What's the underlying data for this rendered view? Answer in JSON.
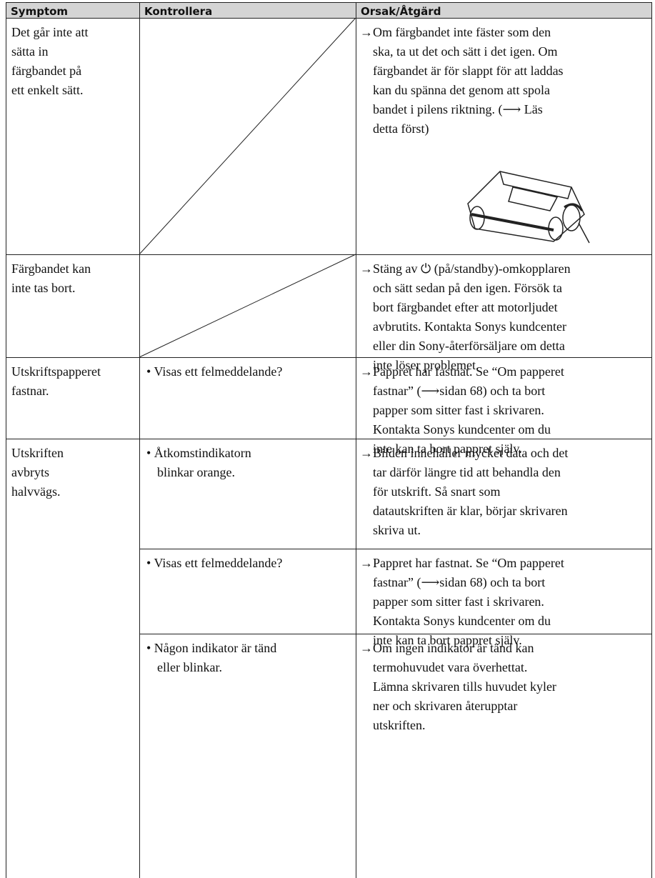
{
  "header": [
    "Symptom",
    "Kontrollera",
    "Orsak/Åtgärd"
  ],
  "rows": [
    {
      "symptom": [
        "Det går inte att",
        "sätta in",
        "färgbandet på",
        "ett enkelt sätt."
      ],
      "checks": [
        {
          "remedy": [
            "→Om färgbandet inte fäster som den",
            "ska, ta ut det och sätt i det igen.  Om",
            "färgbandet är för slappt för att laddas",
            "kan du spänna det genom att spola",
            "bandet i pilens riktning. (⟶ Läs",
            "detta först)"
          ]
        }
      ]
    },
    {
      "symptom": [
        "Färgbandet kan",
        "inte tas bort."
      ],
      "checks": [
        {
          "remedy": [
            "→Stäng av ⏻ (på/standby)-omkopplaren",
            "och sätt sedan på den igen. Försök ta",
            "bort färgbandet efter att motorljudet",
            "avbrutits. Kontakta Sonys kundcenter",
            "eller din Sony-återförsäljare om detta",
            "inte löser problemet."
          ]
        }
      ]
    },
    {
      "symptom": [
        "Utskriftspapperet",
        "fastnar."
      ],
      "checks": [
        {
          "check": [
            "• Visas ett felmeddelande?"
          ],
          "remedy": [
            "→Pappret har fastnat. Se “Om papperet",
            "fastnar” (⟶sidan 68) och ta bort",
            "papper som sitter fast i skrivaren.",
            "Kontakta Sonys kundcenter om du",
            "inte kan ta bort pappret själv."
          ]
        }
      ]
    },
    {
      "symptom": [
        "Utskriften",
        "avbryts",
        "halvvägs."
      ],
      "checks": [
        {
          "check": [
            "• Åtkomstindikatorn",
            "blinkar orange."
          ],
          "remedy": [
            "→Bilden innehåller mycket data och det",
            "tar därför längre tid att behandla den",
            "för utskrift. Så snart som",
            "datautskriften är klar, börjar skrivaren",
            "skriva ut."
          ]
        },
        {
          "check": [
            "• Visas ett felmeddelande?"
          ],
          "remedy": [
            "→Pappret har fastnat. Se “Om papperet",
            "fastnar” (⟶sidan 68) och ta bort",
            "papper som sitter fast i skrivaren.",
            "Kontakta Sonys kundcenter om du",
            "inte kan ta bort pappret själv."
          ]
        },
        {
          "check": [
            "• Någon indikator är tänd",
            "eller blinkar."
          ],
          "remedy": [
            "→Om ingen indikator är tänd kan",
            "termohuvudet vara överhettat.",
            "Lämna skrivaren tills huvudet kyler",
            "ner och skrivaren återupptar",
            "utskriften."
          ]
        }
      ]
    }
  ]
}
